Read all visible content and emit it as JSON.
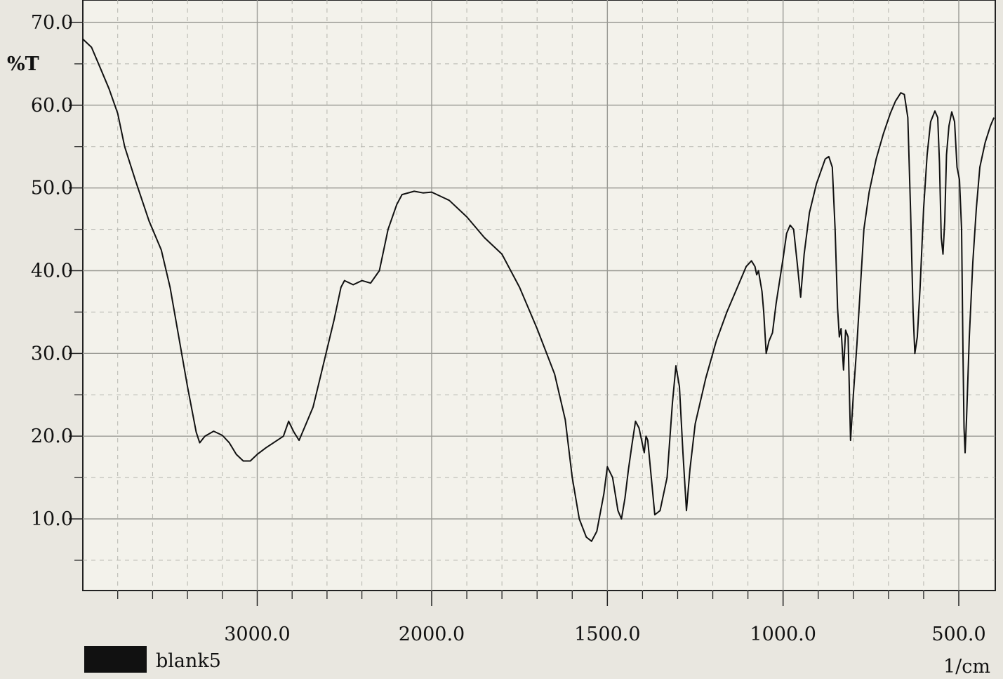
{
  "chart_data": {
    "type": "line",
    "title": "",
    "xlabel": "1/cm",
    "ylabel": "%T",
    "x_reversed": true,
    "xlim": [
      4000,
      400
    ],
    "ylim": [
      0,
      70
    ],
    "xticks": [
      3000,
      2000,
      1500,
      1000,
      500
    ],
    "xtick_labels": [
      "3000.0",
      "2000.0",
      "1500.0",
      "1000.0",
      "500.0"
    ],
    "yticks": [
      10,
      20,
      30,
      40,
      50,
      60,
      70
    ],
    "ytick_labels": [
      "10.0",
      "20.0",
      "30.0",
      "40.0",
      "50.0",
      "60.0",
      "70.0"
    ],
    "grid": true,
    "legend": {
      "position": "bottom-left"
    },
    "series": [
      {
        "name": "blank5",
        "color": "#111111",
        "points": [
          [
            4000,
            68.0
          ],
          [
            3950,
            67.0
          ],
          [
            3900,
            64.5
          ],
          [
            3850,
            62.0
          ],
          [
            3800,
            59.0
          ],
          [
            3760,
            55.0
          ],
          [
            3700,
            51.0
          ],
          [
            3620,
            46.0
          ],
          [
            3550,
            42.5
          ],
          [
            3500,
            38.0
          ],
          [
            3450,
            32.0
          ],
          [
            3400,
            26.0
          ],
          [
            3350,
            20.5
          ],
          [
            3330,
            19.2
          ],
          [
            3300,
            20.0
          ],
          [
            3250,
            20.6
          ],
          [
            3200,
            20.1
          ],
          [
            3160,
            19.2
          ],
          [
            3120,
            17.8
          ],
          [
            3080,
            17.0
          ],
          [
            3040,
            17.0
          ],
          [
            3000,
            17.8
          ],
          [
            2950,
            18.6
          ],
          [
            2900,
            19.3
          ],
          [
            2850,
            20.0
          ],
          [
            2820,
            21.8
          ],
          [
            2790,
            20.5
          ],
          [
            2760,
            19.5
          ],
          [
            2720,
            21.5
          ],
          [
            2680,
            23.5
          ],
          [
            2640,
            27.0
          ],
          [
            2600,
            30.5
          ],
          [
            2560,
            34.0
          ],
          [
            2520,
            38.0
          ],
          [
            2500,
            38.8
          ],
          [
            2450,
            38.3
          ],
          [
            2400,
            38.8
          ],
          [
            2350,
            38.5
          ],
          [
            2300,
            40.0
          ],
          [
            2250,
            45.0
          ],
          [
            2200,
            48.0
          ],
          [
            2170,
            49.2
          ],
          [
            2100,
            49.6
          ],
          [
            2050,
            49.4
          ],
          [
            2000,
            49.5
          ],
          [
            1950,
            48.5
          ],
          [
            1900,
            46.5
          ],
          [
            1850,
            44.0
          ],
          [
            1800,
            42.0
          ],
          [
            1750,
            38.0
          ],
          [
            1700,
            33.0
          ],
          [
            1650,
            27.5
          ],
          [
            1620,
            22.0
          ],
          [
            1600,
            15.0
          ],
          [
            1580,
            10.0
          ],
          [
            1560,
            7.8
          ],
          [
            1545,
            7.3
          ],
          [
            1530,
            8.5
          ],
          [
            1510,
            13.0
          ],
          [
            1500,
            16.3
          ],
          [
            1485,
            15.0
          ],
          [
            1470,
            11.0
          ],
          [
            1460,
            10.0
          ],
          [
            1450,
            12.5
          ],
          [
            1440,
            16.0
          ],
          [
            1430,
            19.0
          ],
          [
            1420,
            21.8
          ],
          [
            1410,
            21.0
          ],
          [
            1400,
            19.0
          ],
          [
            1395,
            18.0
          ],
          [
            1390,
            20.0
          ],
          [
            1385,
            19.5
          ],
          [
            1375,
            15.0
          ],
          [
            1365,
            10.5
          ],
          [
            1350,
            11.0
          ],
          [
            1330,
            15.0
          ],
          [
            1315,
            24.0
          ],
          [
            1305,
            28.5
          ],
          [
            1295,
            26.0
          ],
          [
            1285,
            18.0
          ],
          [
            1275,
            11.0
          ],
          [
            1265,
            16.0
          ],
          [
            1250,
            21.5
          ],
          [
            1220,
            27.0
          ],
          [
            1190,
            31.5
          ],
          [
            1160,
            35.0
          ],
          [
            1130,
            38.0
          ],
          [
            1105,
            40.5
          ],
          [
            1090,
            41.2
          ],
          [
            1080,
            40.5
          ],
          [
            1075,
            39.5
          ],
          [
            1070,
            40.0
          ],
          [
            1060,
            37.5
          ],
          [
            1055,
            35.0
          ],
          [
            1048,
            30.0
          ],
          [
            1040,
            31.5
          ],
          [
            1030,
            32.5
          ],
          [
            1020,
            36.0
          ],
          [
            1000,
            41.5
          ],
          [
            990,
            44.5
          ],
          [
            980,
            45.5
          ],
          [
            970,
            45.0
          ],
          [
            960,
            41.0
          ],
          [
            950,
            36.8
          ],
          [
            940,
            42.0
          ],
          [
            925,
            47.0
          ],
          [
            905,
            50.5
          ],
          [
            880,
            53.5
          ],
          [
            870,
            53.8
          ],
          [
            860,
            52.5
          ],
          [
            852,
            45.0
          ],
          [
            845,
            35.5
          ],
          [
            840,
            32.0
          ],
          [
            835,
            33.0
          ],
          [
            828,
            28.0
          ],
          [
            822,
            32.8
          ],
          [
            815,
            32.0
          ],
          [
            808,
            19.5
          ],
          [
            800,
            25.0
          ],
          [
            790,
            31.0
          ],
          [
            780,
            38.0
          ],
          [
            770,
            45.0
          ],
          [
            755,
            49.5
          ],
          [
            735,
            53.5
          ],
          [
            715,
            56.5
          ],
          [
            695,
            59.0
          ],
          [
            680,
            60.5
          ],
          [
            665,
            61.5
          ],
          [
            655,
            61.3
          ],
          [
            645,
            58.5
          ],
          [
            637,
            47.0
          ],
          [
            630,
            35.0
          ],
          [
            625,
            30.0
          ],
          [
            618,
            32.0
          ],
          [
            610,
            38.0
          ],
          [
            600,
            47.5
          ],
          [
            590,
            54.0
          ],
          [
            580,
            58.0
          ],
          [
            568,
            59.3
          ],
          [
            560,
            58.5
          ],
          [
            555,
            53.0
          ],
          [
            550,
            44.0
          ],
          [
            545,
            42.0
          ],
          [
            540,
            46.0
          ],
          [
            535,
            54.0
          ],
          [
            528,
            57.5
          ],
          [
            520,
            59.2
          ],
          [
            512,
            58.0
          ],
          [
            505,
            52.5
          ],
          [
            498,
            51.0
          ],
          [
            492,
            45.0
          ],
          [
            488,
            30.0
          ],
          [
            485,
            21.0
          ],
          [
            482,
            18.0
          ],
          [
            478,
            22.0
          ],
          [
            470,
            32.0
          ],
          [
            460,
            41.0
          ],
          [
            450,
            47.5
          ],
          [
            440,
            52.5
          ],
          [
            425,
            55.5
          ],
          [
            410,
            57.5
          ],
          [
            400,
            58.5
          ]
        ]
      }
    ]
  }
}
